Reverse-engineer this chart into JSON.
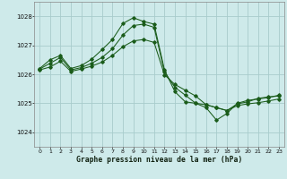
{
  "title": "Graphe pression niveau de la mer (hPa)",
  "bg_color": "#ceeaea",
  "grid_color": "#a8cccc",
  "line_color": "#1a5c1a",
  "xlim": [
    -0.5,
    23.5
  ],
  "ylim": [
    1023.5,
    1028.5
  ],
  "yticks": [
    1024,
    1025,
    1026,
    1027,
    1028
  ],
  "xticks": [
    0,
    1,
    2,
    3,
    4,
    5,
    6,
    7,
    8,
    9,
    10,
    11,
    12,
    13,
    14,
    15,
    16,
    17,
    18,
    19,
    20,
    21,
    22,
    23
  ],
  "series": [
    {
      "x": [
        0,
        1,
        2,
        3,
        4,
        5,
        6,
        7,
        8,
        9,
        10,
        11,
        12,
        13,
        14,
        15,
        16,
        17,
        18,
        19,
        20,
        21,
        22,
        23
      ],
      "y": [
        1026.2,
        1026.5,
        1026.65,
        1026.2,
        1026.3,
        1026.52,
        1026.85,
        1027.2,
        1027.75,
        1027.95,
        1027.82,
        1027.73,
        1026.15,
        1025.4,
        1025.05,
        1025.0,
        1024.85,
        1024.42,
        1024.65,
        1025.0,
        1025.1,
        1025.15,
        1025.2,
        1025.28
      ]
    },
    {
      "x": [
        0,
        1,
        2,
        3,
        4,
        5,
        6,
        7,
        8,
        9,
        10,
        11,
        12,
        13,
        14,
        15,
        16,
        17,
        18,
        19,
        20,
        21,
        22,
        23
      ],
      "y": [
        1026.18,
        1026.38,
        1026.58,
        1026.15,
        1026.23,
        1026.38,
        1026.58,
        1026.88,
        1027.35,
        1027.68,
        1027.73,
        1027.62,
        1026.08,
        1025.55,
        1025.28,
        1025.0,
        1024.95,
        1024.85,
        1024.75,
        1024.98,
        1025.05,
        1025.17,
        1025.22,
        1025.25
      ]
    },
    {
      "x": [
        0,
        1,
        2,
        3,
        4,
        5,
        6,
        7,
        8,
        9,
        10,
        11,
        12,
        13,
        14,
        15,
        16,
        17,
        18,
        19,
        20,
        21,
        22,
        23
      ],
      "y": [
        1026.15,
        1026.25,
        1026.45,
        1026.1,
        1026.18,
        1026.28,
        1026.42,
        1026.65,
        1026.95,
        1027.15,
        1027.2,
        1027.1,
        1025.98,
        1025.65,
        1025.45,
        1025.25,
        1024.95,
        1024.85,
        1024.75,
        1024.92,
        1024.98,
        1025.02,
        1025.08,
        1025.15
      ]
    }
  ]
}
